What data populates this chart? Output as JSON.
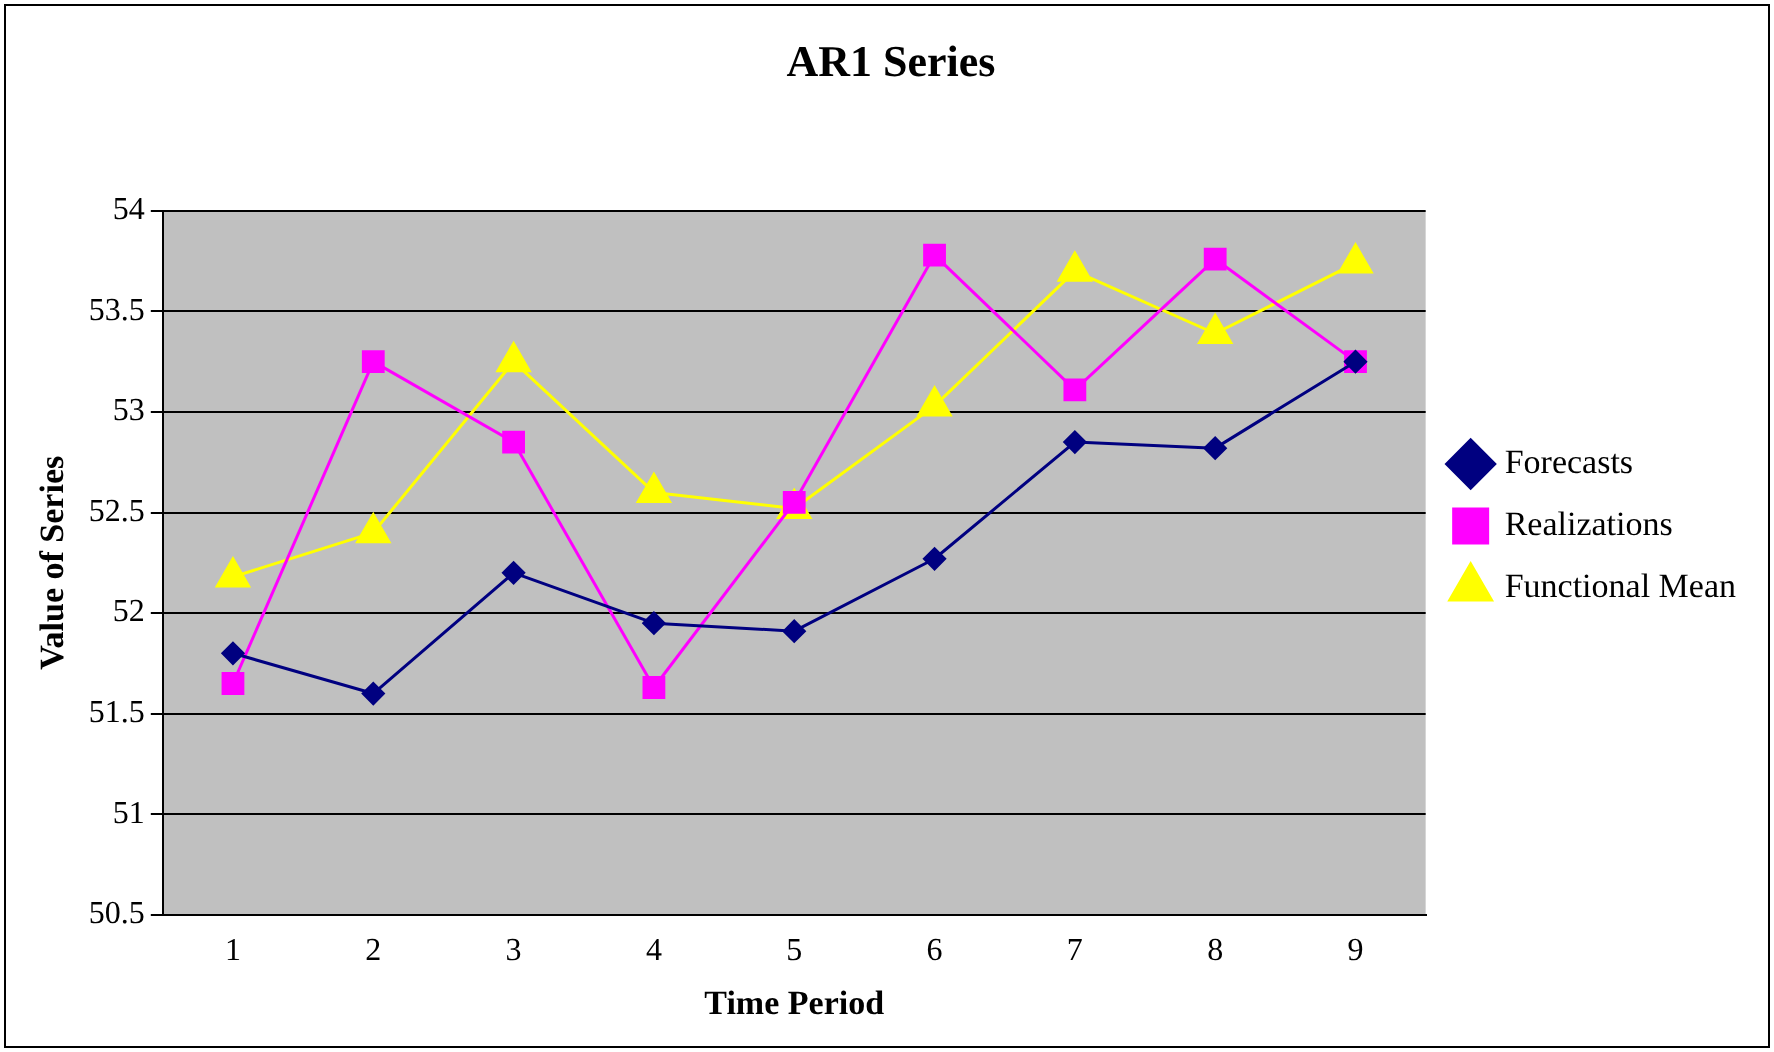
{
  "chart_data": {
    "type": "line",
    "title": "AR1 Series",
    "xlabel": "Time Period",
    "ylabel": "Value of Series",
    "categories": [
      "1",
      "2",
      "3",
      "4",
      "5",
      "6",
      "7",
      "8",
      "9"
    ],
    "series": [
      {
        "name": "Forecasts",
        "color": "#000080",
        "marker": "diamond",
        "values": [
          51.8,
          51.6,
          52.2,
          51.95,
          51.91,
          52.27,
          52.85,
          52.82,
          53.25
        ]
      },
      {
        "name": "Realizations",
        "color": "#ff00ff",
        "marker": "square",
        "values": [
          51.65,
          53.25,
          52.85,
          51.63,
          52.55,
          53.78,
          53.11,
          53.76,
          53.25
        ]
      },
      {
        "name": "Functional Mean",
        "color": "#ffff00",
        "marker": "triangle",
        "values": [
          52.18,
          52.4,
          53.25,
          52.6,
          52.52,
          53.03,
          53.7,
          53.39,
          53.74
        ]
      }
    ],
    "ylim": [
      50.5,
      54
    ],
    "yticks": [
      50.5,
      51,
      51.5,
      52,
      52.5,
      53,
      53.5,
      54
    ],
    "grid": "y",
    "legend": "right"
  }
}
